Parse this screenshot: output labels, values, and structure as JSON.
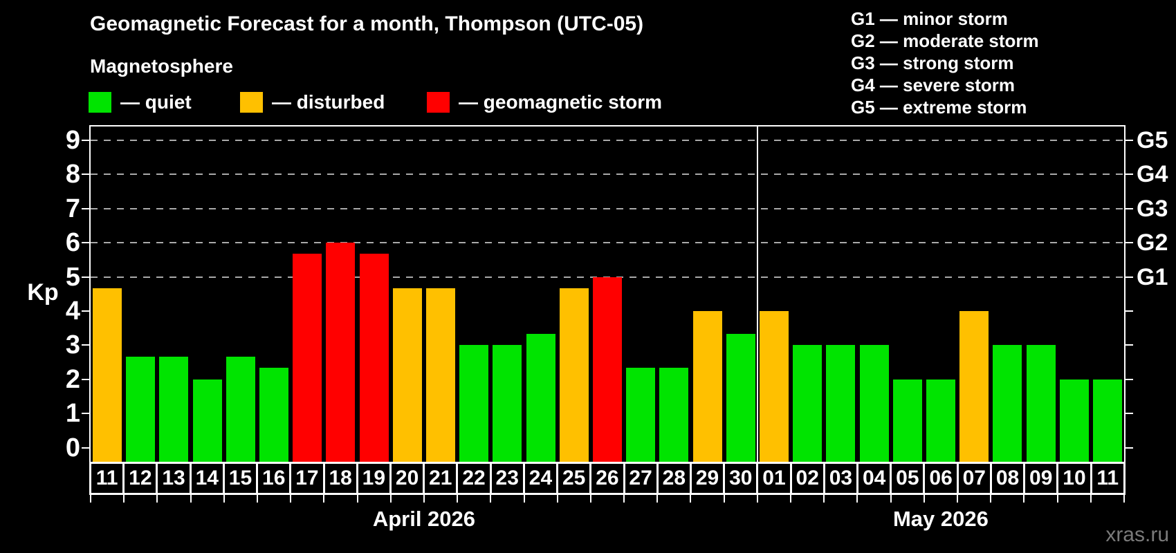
{
  "title": "Geomagnetic Forecast for a month, Thompson (UTC-05)",
  "subtitle": "Magnetosphere",
  "legend": [
    {
      "key": "quiet",
      "label": "— quiet"
    },
    {
      "key": "disturbed",
      "label": "— disturbed"
    },
    {
      "key": "storm",
      "label": "— geomagnetic storm"
    }
  ],
  "g_scale_legend": [
    "G1 — minor storm",
    "G2 — moderate storm",
    "G3 — strong storm",
    "G4 — severe storm",
    "G5 — extreme storm"
  ],
  "colors": {
    "quiet": "#00e400",
    "disturbed": "#ffc000",
    "storm": "#ff0000",
    "gridline": "#aaaaaa",
    "axis": "#ffffff",
    "watermark": "#7a7a7a"
  },
  "y_axis": {
    "label": "Kp",
    "ticks": [
      "0",
      "1",
      "2",
      "3",
      "4",
      "5",
      "6",
      "7",
      "8",
      "9"
    ]
  },
  "right_axis": [
    {
      "kp": 5,
      "label": "G1"
    },
    {
      "kp": 6,
      "label": "G2"
    },
    {
      "kp": 7,
      "label": "G3"
    },
    {
      "kp": 8,
      "label": "G4"
    },
    {
      "kp": 9,
      "label": "G5"
    }
  ],
  "watermark": "xras.ru",
  "chart_data": {
    "type": "bar",
    "title": "Geomagnetic Forecast for a month, Thompson (UTC-05)",
    "xlabel": "",
    "ylabel": "Kp",
    "ylim": [
      0,
      9
    ],
    "gridlines_at": [
      5,
      6,
      7,
      8,
      9
    ],
    "legend_position": "top-left",
    "months": [
      {
        "label": "April 2026",
        "days": [
          {
            "day": "11",
            "kp": 4.67,
            "status": "disturbed"
          },
          {
            "day": "12",
            "kp": 2.67,
            "status": "quiet"
          },
          {
            "day": "13",
            "kp": 2.67,
            "status": "quiet"
          },
          {
            "day": "14",
            "kp": 2.0,
            "status": "quiet"
          },
          {
            "day": "15",
            "kp": 2.67,
            "status": "quiet"
          },
          {
            "day": "16",
            "kp": 2.33,
            "status": "quiet"
          },
          {
            "day": "17",
            "kp": 5.67,
            "status": "storm"
          },
          {
            "day": "18",
            "kp": 6.0,
            "status": "storm"
          },
          {
            "day": "19",
            "kp": 5.67,
            "status": "storm"
          },
          {
            "day": "20",
            "kp": 4.67,
            "status": "disturbed"
          },
          {
            "day": "21",
            "kp": 4.67,
            "status": "disturbed"
          },
          {
            "day": "22",
            "kp": 3.0,
            "status": "quiet"
          },
          {
            "day": "23",
            "kp": 3.0,
            "status": "quiet"
          },
          {
            "day": "24",
            "kp": 3.33,
            "status": "quiet"
          },
          {
            "day": "25",
            "kp": 4.67,
            "status": "disturbed"
          },
          {
            "day": "26",
            "kp": 5.0,
            "status": "storm"
          },
          {
            "day": "27",
            "kp": 2.33,
            "status": "quiet"
          },
          {
            "day": "28",
            "kp": 2.33,
            "status": "quiet"
          },
          {
            "day": "29",
            "kp": 4.0,
            "status": "disturbed"
          },
          {
            "day": "30",
            "kp": 3.33,
            "status": "quiet"
          }
        ]
      },
      {
        "label": "May 2026",
        "days": [
          {
            "day": "01",
            "kp": 4.0,
            "status": "disturbed"
          },
          {
            "day": "02",
            "kp": 3.0,
            "status": "quiet"
          },
          {
            "day": "03",
            "kp": 3.0,
            "status": "quiet"
          },
          {
            "day": "04",
            "kp": 3.0,
            "status": "quiet"
          },
          {
            "day": "05",
            "kp": 2.0,
            "status": "quiet"
          },
          {
            "day": "06",
            "kp": 2.0,
            "status": "quiet"
          },
          {
            "day": "07",
            "kp": 4.0,
            "status": "disturbed"
          },
          {
            "day": "08",
            "kp": 3.0,
            "status": "quiet"
          },
          {
            "day": "09",
            "kp": 3.0,
            "status": "quiet"
          },
          {
            "day": "10",
            "kp": 2.0,
            "status": "quiet"
          },
          {
            "day": "11",
            "kp": 2.0,
            "status": "quiet"
          }
        ]
      }
    ]
  }
}
